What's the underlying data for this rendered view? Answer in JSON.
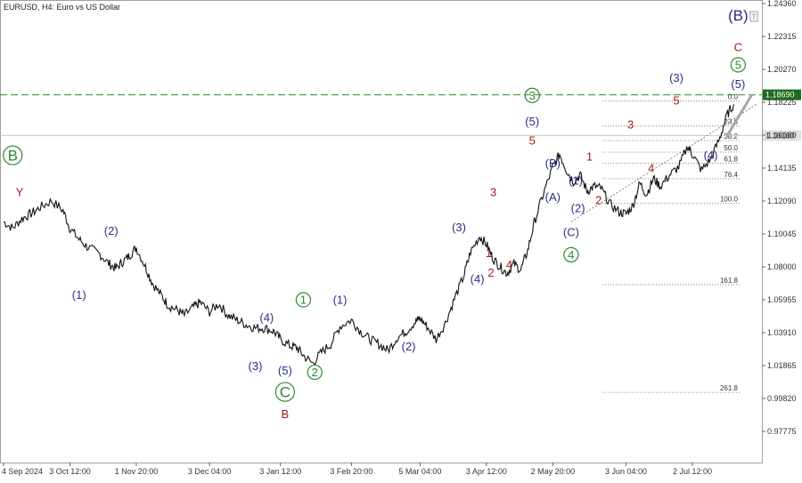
{
  "chart_data": {
    "type": "line",
    "title": "EURUSD, H4:  Euro vs US Dollar",
    "symbol": "EURUSD",
    "timeframe": "H4",
    "description": "Euro vs US Dollar",
    "ylim": [
      0.9727,
      1.2462
    ],
    "y_ticks": [
      "1.24360",
      "1.22315",
      "1.20270",
      "1.18225",
      "1.16180",
      "1.14135",
      "1.12090",
      "1.10045",
      "1.08000",
      "1.05955",
      "1.03910",
      "1.01865",
      "0.99820",
      "0.97775"
    ],
    "y_tick_values": [
      1.2436,
      1.22315,
      1.2027,
      1.18225,
      1.1618,
      1.14135,
      1.1209,
      1.10045,
      1.08,
      1.05955,
      1.0391,
      1.01865,
      0.9982,
      0.97775
    ],
    "x_ticks": [
      "4 Sep 2024",
      "3 Oct 12:00",
      "1 Nov 20:00",
      "3 Dec 04:00",
      "3 Jan 12:00",
      "3 Feb 20:00",
      "5 Mar 04:00",
      "3 Apr 12:00",
      "2 May 20:00",
      "3 Jun 04:00",
      "2 Jul 12:00"
    ],
    "x_tick_dates": [
      "2024-09-04",
      "2024-10-03",
      "2024-11-01",
      "2024-12-03",
      "2025-01-03",
      "2025-02-03",
      "2025-03-05",
      "2025-04-03",
      "2025-05-02",
      "2025-06-03",
      "2025-07-02"
    ],
    "series": [
      {
        "x": [
          "2024-09-04",
          "2024-09-08",
          "2024-09-12",
          "2024-09-16",
          "2024-09-20",
          "2024-09-25",
          "2024-09-30",
          "2024-10-03",
          "2024-10-07",
          "2024-10-11",
          "2024-10-16",
          "2024-10-20",
          "2024-10-23",
          "2024-10-26",
          "2024-10-29",
          "2024-11-01",
          "2024-11-05",
          "2024-11-08",
          "2024-11-12",
          "2024-11-15",
          "2024-11-19",
          "2024-11-22",
          "2024-11-26",
          "2024-11-29",
          "2024-12-03",
          "2024-12-07",
          "2024-12-11",
          "2024-12-15",
          "2024-12-19",
          "2024-12-23",
          "2024-12-27",
          "2024-12-31",
          "2025-01-03",
          "2025-01-07",
          "2025-01-10",
          "2025-01-13",
          "2025-01-17",
          "2025-01-21",
          "2025-01-25",
          "2025-01-29",
          "2025-02-03",
          "2025-02-07",
          "2025-02-11",
          "2025-02-15",
          "2025-02-19",
          "2025-02-23",
          "2025-02-27",
          "2025-03-03",
          "2025-03-05",
          "2025-03-08",
          "2025-03-12",
          "2025-03-16",
          "2025-03-20",
          "2025-03-24",
          "2025-03-27",
          "2025-03-31",
          "2025-04-03",
          "2025-04-06",
          "2025-04-09",
          "2025-04-12",
          "2025-04-15",
          "2025-04-18",
          "2025-04-21",
          "2025-04-24",
          "2025-04-28",
          "2025-05-02",
          "2025-05-05",
          "2025-05-08",
          "2025-05-11",
          "2025-05-14",
          "2025-05-17",
          "2025-05-20",
          "2025-05-23",
          "2025-05-27",
          "2025-05-31",
          "2025-06-03",
          "2025-06-06",
          "2025-06-09",
          "2025-06-12",
          "2025-06-15",
          "2025-06-18",
          "2025-06-22",
          "2025-06-26",
          "2025-06-30",
          "2025-07-02",
          "2025-07-06",
          "2025-07-10",
          "2025-07-14",
          "2025-07-17",
          "2025-07-20"
        ],
        "y": [
          1.108,
          1.104,
          1.11,
          1.113,
          1.117,
          1.121,
          1.115,
          1.104,
          1.097,
          1.092,
          1.088,
          1.082,
          1.079,
          1.083,
          1.087,
          1.092,
          1.08,
          1.07,
          1.062,
          1.056,
          1.053,
          1.05,
          1.055,
          1.058,
          1.052,
          1.057,
          1.05,
          1.047,
          1.044,
          1.042,
          1.042,
          1.04,
          1.035,
          1.031,
          1.03,
          1.025,
          1.02,
          1.027,
          1.032,
          1.043,
          1.047,
          1.04,
          1.035,
          1.032,
          1.028,
          1.036,
          1.04,
          1.046,
          1.048,
          1.043,
          1.035,
          1.045,
          1.06,
          1.074,
          1.089,
          1.099,
          1.094,
          1.085,
          1.08,
          1.076,
          1.082,
          1.078,
          1.09,
          1.108,
          1.126,
          1.142,
          1.15,
          1.14,
          1.133,
          1.137,
          1.127,
          1.13,
          1.129,
          1.119,
          1.114,
          1.113,
          1.118,
          1.132,
          1.125,
          1.135,
          1.13,
          1.137,
          1.142,
          1.155,
          1.15,
          1.14,
          1.147,
          1.16,
          1.174,
          1.181
        ]
      }
    ],
    "current_price_label": "1.16160",
    "current_price": 1.1616,
    "resistance_label": "1.18690",
    "resistance_price": 1.1869,
    "grid": false,
    "fib_levels": [
      {
        "label": "0.0",
        "price": 1.183
      },
      {
        "label": "23.6",
        "price": 1.1675
      },
      {
        "label": "38.2",
        "price": 1.1585
      },
      {
        "label": "50.0",
        "price": 1.1513
      },
      {
        "label": "61.8",
        "price": 1.1443
      },
      {
        "label": "76.4",
        "price": 1.1348
      },
      {
        "label": "100.0",
        "price": 1.1194
      },
      {
        "label": "161.8",
        "price": 1.0689
      },
      {
        "label": "261.8",
        "price": 1.002
      }
    ],
    "wave_labels": [
      {
        "text": "B",
        "color": "green",
        "circled": true,
        "date": "2024-09-08",
        "price": 1.146
      },
      {
        "text": "Y",
        "color": "red",
        "date": "2024-09-11",
        "price": 1.124
      },
      {
        "text": "(2)",
        "color": "blue",
        "date": "2024-10-21",
        "price": 1.1
      },
      {
        "text": "(1)",
        "color": "blue",
        "date": "2024-10-07",
        "price": 1.06
      },
      {
        "text": "(4)",
        "color": "blue",
        "date": "2024-12-28",
        "price": 1.046
      },
      {
        "text": "(3)",
        "color": "blue",
        "date": "2024-12-23",
        "price": 1.016
      },
      {
        "text": "(5)",
        "color": "blue",
        "date": "2025-01-05",
        "price": 1.013
      },
      {
        "text": "C",
        "color": "green",
        "circled": true,
        "date": "2025-01-05",
        "price": 0.999
      },
      {
        "text": "B",
        "color": "red",
        "date": "2025-01-05",
        "price": 0.986
      },
      {
        "text": "1",
        "color": "green",
        "circled": true,
        "date": "2025-01-13",
        "price": 1.057
      },
      {
        "text": "(1)",
        "color": "blue",
        "date": "2025-01-29",
        "price": 1.057
      },
      {
        "text": "2",
        "color": "green",
        "circled": true,
        "date": "2025-01-18",
        "price": 1.012
      },
      {
        "text": "(2)",
        "color": "blue",
        "date": "2025-02-28",
        "price": 1.028
      },
      {
        "text": "(3)",
        "color": "blue",
        "date": "2025-03-22",
        "price": 1.102
      },
      {
        "text": "(4)",
        "color": "blue",
        "date": "2025-03-30",
        "price": 1.07
      },
      {
        "text": "1",
        "color": "red",
        "date": "2025-04-04",
        "price": 1.086
      },
      {
        "text": "2",
        "color": "red",
        "date": "2025-04-05",
        "price": 1.074
      },
      {
        "text": "3",
        "color": "red",
        "date": "2025-04-06",
        "price": 1.124
      },
      {
        "text": "4",
        "color": "red",
        "date": "2025-04-13",
        "price": 1.079
      },
      {
        "text": "3",
        "color": "green",
        "circled": true,
        "date": "2025-04-23",
        "price": 1.184
      },
      {
        "text": "(5)",
        "color": "blue",
        "date": "2025-04-23",
        "price": 1.168
      },
      {
        "text": "5",
        "color": "red",
        "date": "2025-04-23",
        "price": 1.156
      },
      {
        "text": "(B)",
        "color": "blue",
        "date": "2025-05-02",
        "price": 1.142
      },
      {
        "text": "(A)",
        "color": "blue",
        "date": "2025-05-02",
        "price": 1.121
      },
      {
        "text": "(1)",
        "color": "blue",
        "date": "2025-05-12",
        "price": 1.131
      },
      {
        "text": "(C)",
        "color": "blue",
        "date": "2025-05-10",
        "price": 1.099
      },
      {
        "text": "(2)",
        "color": "blue",
        "date": "2025-05-13",
        "price": 1.114
      },
      {
        "text": "4",
        "color": "green",
        "circled": true,
        "date": "2025-05-10",
        "price": 1.085
      },
      {
        "text": "1",
        "color": "red",
        "date": "2025-05-18",
        "price": 1.146
      },
      {
        "text": "2",
        "color": "red",
        "date": "2025-05-22",
        "price": 1.119
      },
      {
        "text": "3",
        "color": "red",
        "date": "2025-06-05",
        "price": 1.166
      },
      {
        "text": "4",
        "color": "red",
        "date": "2025-06-14",
        "price": 1.139
      },
      {
        "text": "(3)",
        "color": "blue",
        "date": "2025-06-25",
        "price": 1.195
      },
      {
        "text": "5",
        "color": "red",
        "date": "2025-06-25",
        "price": 1.181
      },
      {
        "text": "(4)",
        "color": "blue",
        "date": "2025-07-10",
        "price": 1.147
      },
      {
        "text": "(B)",
        "color": "blue",
        "date": "2025-07-22",
        "price": 1.233
      },
      {
        "text": "C",
        "color": "red",
        "date": "2025-07-22",
        "price": 1.214
      },
      {
        "text": "5",
        "color": "green",
        "circled": true,
        "date": "2025-07-22",
        "price": 1.203
      },
      {
        "text": "(5)",
        "color": "blue",
        "date": "2025-07-22",
        "price": 1.191
      }
    ],
    "projection": [
      {
        "date": "2025-07-17",
        "price": 1.161
      },
      {
        "date": "2025-07-28",
        "price": 1.187
      }
    ],
    "trendline": [
      {
        "date": "2025-05-10",
        "price": 1.108
      },
      {
        "date": "2025-07-30",
        "price": 1.181
      }
    ],
    "fib_anchor_date": "2025-06-20"
  }
}
